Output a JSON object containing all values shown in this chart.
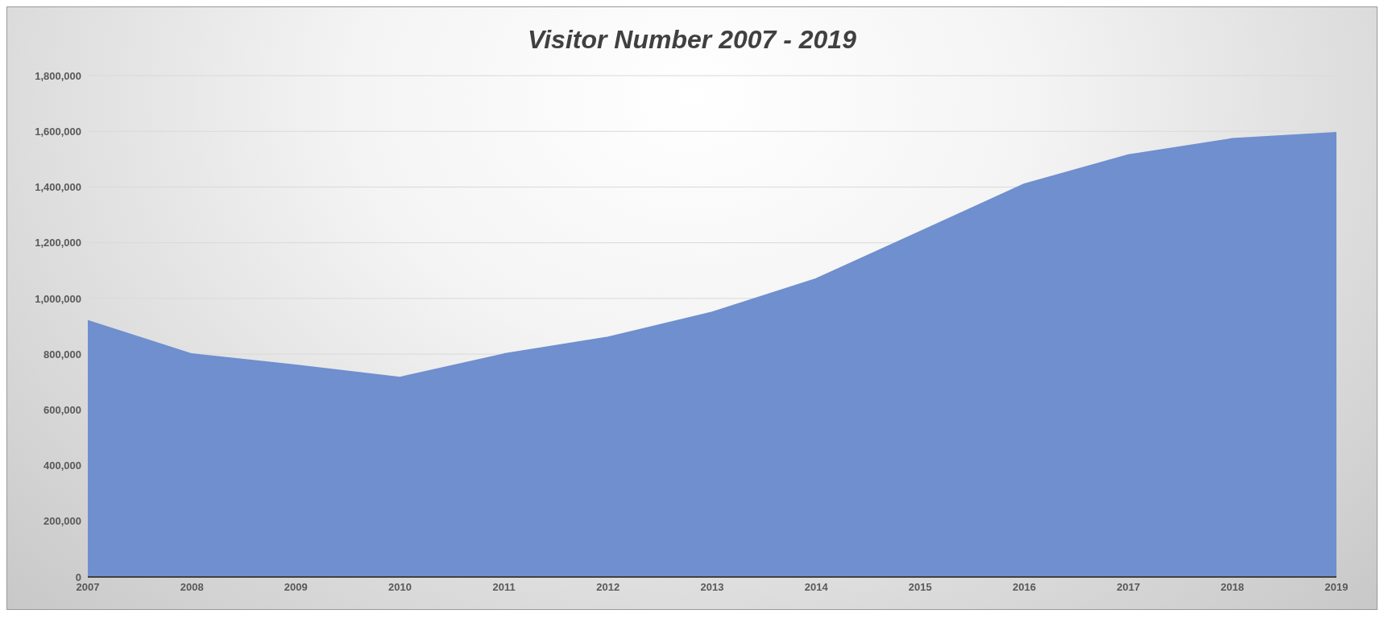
{
  "chart_data": {
    "type": "area",
    "title": "Visitor Number 2007 - 2019",
    "categories": [
      "2007",
      "2008",
      "2009",
      "2010",
      "2011",
      "2012",
      "2013",
      "2014",
      "2015",
      "2016",
      "2017",
      "2018",
      "2019"
    ],
    "series": [
      {
        "color": "#6f8fcf",
        "values": [
          920000,
          800000,
          760000,
          716000,
          800000,
          860000,
          950000,
          1070000,
          1240000,
          1410000,
          1515000,
          1573000,
          1595000
        ]
      }
    ],
    "ylim": [
      0,
      1800000
    ],
    "yticks": [
      0,
      {
        "value": 200000,
        "label": "200,000"
      },
      {
        "value": 400000,
        "label": "400,000"
      },
      {
        "value": 600000,
        "label": "600,000"
      },
      {
        "value": 800000,
        "label": "800,000"
      },
      {
        "value": 1000000,
        "label": "1,000,000"
      },
      {
        "value": 1200000,
        "label": "1,200,000"
      },
      {
        "value": 1400000,
        "label": "1,400,000"
      },
      {
        "value": 1600000,
        "label": "1,600,000"
      },
      {
        "value": 1800000,
        "label": "1,800,000"
      }
    ],
    "grid": "y",
    "legend": false,
    "marker": "none"
  }
}
